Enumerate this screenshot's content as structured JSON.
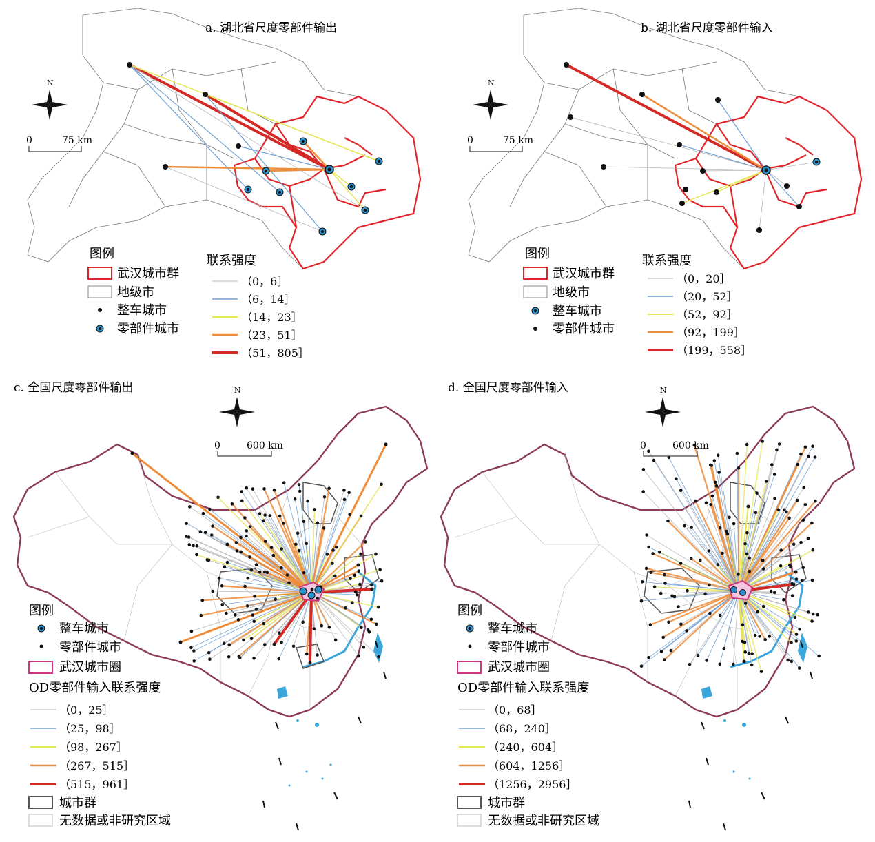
{
  "panels": {
    "a": {
      "title": "a. 湖北省尺度零部件输出",
      "legend_title": "图例",
      "legend_items": [
        "武汉城市群",
        "地级市",
        "整车城市",
        "零部件城市"
      ],
      "strength_title": "联系强度",
      "classes": [
        "（0，6］",
        "（6，14］",
        "（14，23］",
        "（23，51］",
        "（51，805］"
      ],
      "scale_labels": [
        "0",
        "75 km"
      ]
    },
    "b": {
      "title": "b. 湖北省尺度零部件输入",
      "legend_title": "图例",
      "legend_items": [
        "武汉城市群",
        "地级市",
        "整车城市",
        "零部件城市"
      ],
      "strength_title": "联系强度",
      "classes": [
        "（0，20］",
        "（20，52］",
        "（52，92］",
        "（92，199］",
        "（199，558］"
      ],
      "scale_labels": [
        "0",
        "75 km"
      ]
    },
    "c": {
      "title": "c. 全国尺度零部件输出",
      "legend_title": "图例",
      "legend_items": [
        "整车城市",
        "零部件城市",
        "武汉城市圈"
      ],
      "strength_title": "OD零部件输入联系强度",
      "classes": [
        "（0，25］",
        "（25，98］",
        "（98，267］",
        "（267，515］",
        "（515，961］"
      ],
      "extra_items": [
        "城市群",
        "无数据或非研究区域"
      ],
      "scale_labels": [
        "0",
        "600 km"
      ]
    },
    "d": {
      "title": "d. 全国尺度零部件输入",
      "legend_title": "图例",
      "legend_items": [
        "整车城市",
        "零部件城市",
        "武汉城市圈"
      ],
      "strength_title": "OD零部件输入联系强度",
      "classes": [
        "（0，68］",
        "（68，240］",
        "（240，604］",
        "（604，1256］",
        "（1256，2956］"
      ],
      "extra_items": [
        "城市群",
        "无数据或非研究区域"
      ],
      "scale_labels": [
        "0",
        "600 km"
      ]
    }
  },
  "north_label": "N",
  "colors": {
    "class1": "#b5b5b5",
    "class2": "#6f9fd4",
    "class3": "#e6e65a",
    "class4": "#ef8c3a",
    "class5": "#d42a26",
    "cluster_hubei": "#e0262b",
    "cluster_china": "#d0357f",
    "china_border": "#8c3b58",
    "coast": "#3aa6dc",
    "vehicle_city": "#2a8fc8"
  }
}
